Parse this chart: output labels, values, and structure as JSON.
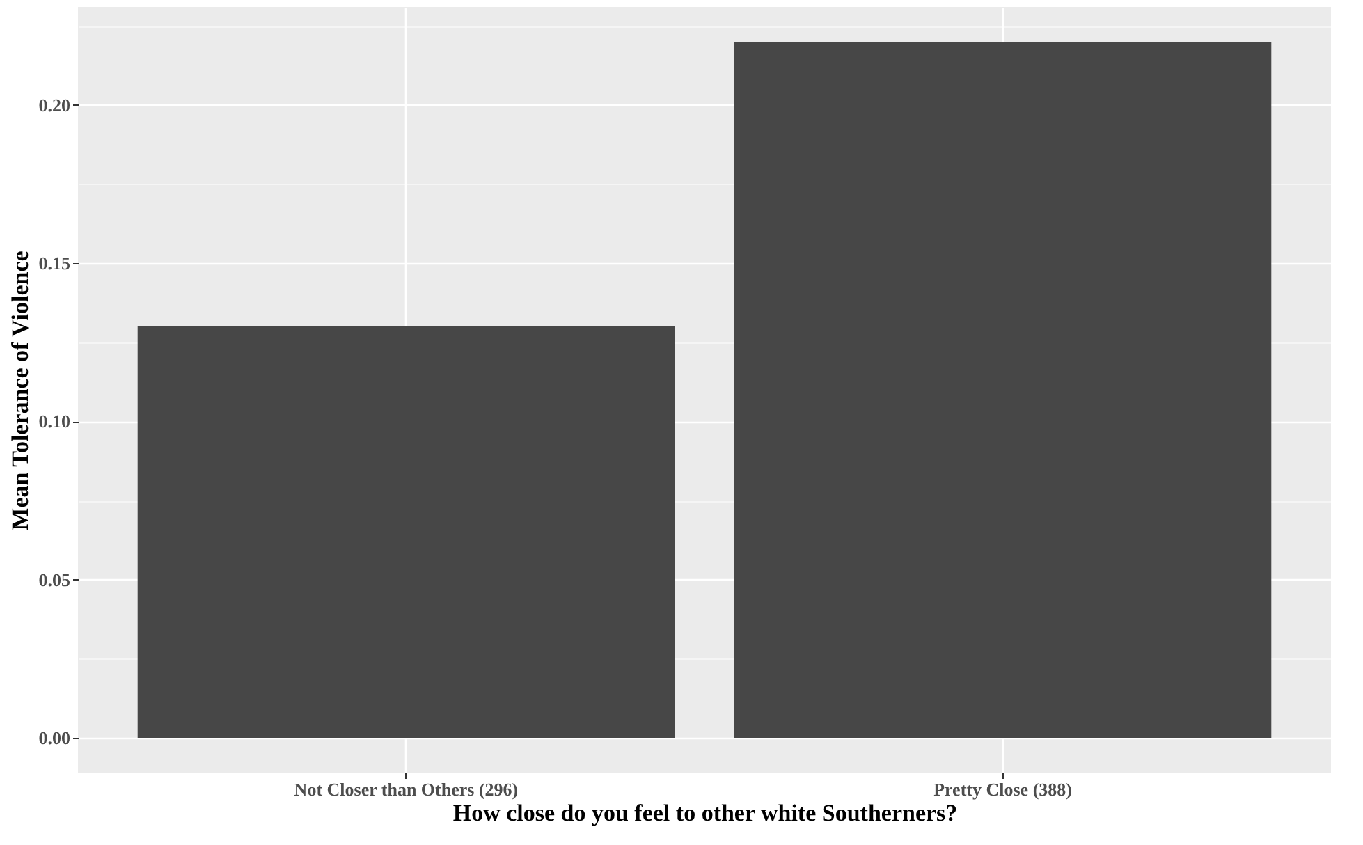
{
  "chart_data": {
    "type": "bar",
    "xlabel": "How close do you feel to other white Southerners?",
    "ylabel": "Mean Tolerance of Violence",
    "categories": [
      "Not Closer than Others (296)",
      "Pretty Close (388)"
    ],
    "values": [
      0.13,
      0.22
    ],
    "color": "#474747",
    "ylim": [
      -0.011,
      0.231
    ],
    "yticks": [
      {
        "value": 0.0,
        "label": "0.00"
      },
      {
        "value": 0.025,
        "label": null
      },
      {
        "value": 0.05,
        "label": "0.05"
      },
      {
        "value": 0.075,
        "label": null
      },
      {
        "value": 0.1,
        "label": "0.10"
      },
      {
        "value": 0.125,
        "label": null
      },
      {
        "value": 0.15,
        "label": "0.15"
      },
      {
        "value": 0.175,
        "label": null
      },
      {
        "value": 0.2,
        "label": "0.20"
      },
      {
        "value": 0.225,
        "label": null
      }
    ],
    "grid": true
  }
}
